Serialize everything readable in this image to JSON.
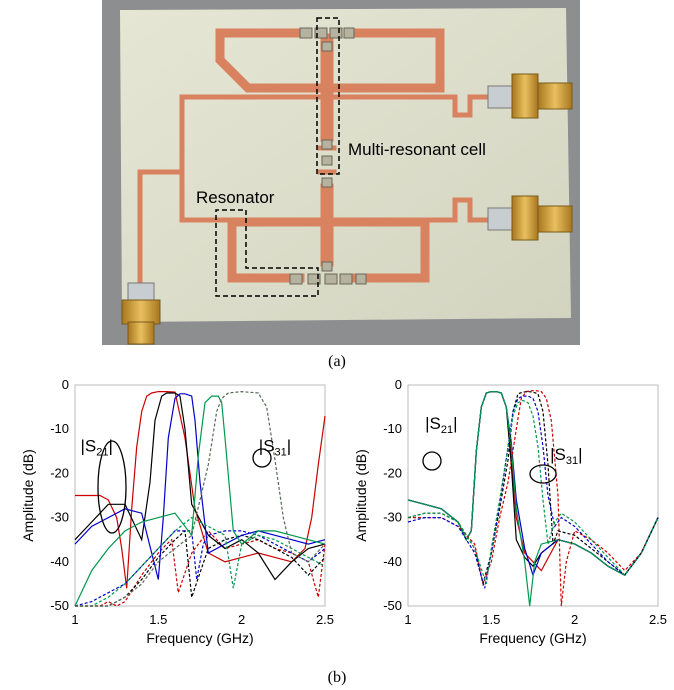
{
  "photo": {
    "labels": {
      "cell": "Multi-resonant cell",
      "resonator": "Resonator"
    },
    "colors": {
      "board": "#dcdcc8",
      "copper": "#d9825f",
      "background": "#8c8e90",
      "connector": "#d4a240"
    }
  },
  "captions": {
    "a": "(a)",
    "b": "(b)"
  },
  "chart_data": [
    {
      "type": "line",
      "xlabel": "Frequency (GHz)",
      "ylabel": "Amplitude (dB)",
      "xlim": [
        1,
        2.5
      ],
      "ylim": [
        -50,
        0
      ],
      "xticks": [
        "1",
        "1.5",
        "2",
        "2.5"
      ],
      "yticks": [
        "0",
        "-10",
        "-20",
        "-30",
        "-40",
        "-50"
      ],
      "annotations": [
        {
          "base": "|S",
          "sub": "21",
          "end": "|",
          "x": 1.13,
          "y": -15
        },
        {
          "base": "|S",
          "sub": "31",
          "end": "|",
          "x": 2.2,
          "y": -15
        }
      ],
      "series": [
        {
          "color": "#cc0000",
          "style": "solid",
          "x": [
            1,
            1.05,
            1.1,
            1.15,
            1.2,
            1.25,
            1.28,
            1.31,
            1.34,
            1.37,
            1.4,
            1.43,
            1.46,
            1.5,
            1.55,
            1.6,
            1.66,
            1.72,
            1.8,
            1.9,
            2,
            2.1,
            2.2,
            2.3,
            2.38,
            2.42,
            2.46,
            2.5
          ],
          "y": [
            -25,
            -25,
            -25,
            -25,
            -26,
            -30,
            -37,
            -46,
            -28,
            -14,
            -6,
            -2.5,
            -1.8,
            -1.5,
            -1.5,
            -1.6,
            -12,
            -28,
            -38,
            -40,
            -39,
            -38,
            -39,
            -40,
            -37,
            -30,
            -18,
            -7
          ]
        },
        {
          "color": "#cc0000",
          "style": "dashed",
          "x": [
            1,
            1.05,
            1.1,
            1.15,
            1.2,
            1.25,
            1.3,
            1.4,
            1.5,
            1.55,
            1.58,
            1.62,
            1.7,
            1.8,
            1.9,
            2.0,
            2.1,
            2.2,
            2.3,
            2.4,
            2.46,
            2.5
          ],
          "y": [
            -50,
            -50,
            -50,
            -50,
            -49,
            -50,
            -49,
            -43,
            -38,
            -36,
            -35,
            -47,
            -38,
            -33,
            -37,
            -36,
            -35,
            -37,
            -38,
            -40,
            -48,
            -36
          ]
        },
        {
          "color": "#000000",
          "style": "solid",
          "x": [
            1,
            1.05,
            1.1,
            1.15,
            1.2,
            1.3,
            1.4,
            1.45,
            1.48,
            1.52,
            1.55,
            1.6,
            1.63,
            1.66,
            1.7,
            1.8,
            1.9,
            2,
            2.1,
            2.2,
            2.3,
            2.4,
            2.5
          ],
          "y": [
            -35,
            -33,
            -31,
            -29,
            -27,
            -27,
            -35,
            -22,
            -8,
            -2.5,
            -1.8,
            -1.8,
            -2.5,
            -10,
            -27,
            -34,
            -37,
            -35,
            -38,
            -44,
            -40,
            -37,
            -36
          ]
        },
        {
          "color": "#000000",
          "style": "dashed",
          "x": [
            1,
            1.1,
            1.2,
            1.3,
            1.4,
            1.5,
            1.6,
            1.66,
            1.7,
            1.8,
            1.9,
            2,
            2.1,
            2.2,
            2.3,
            2.4,
            2.5
          ],
          "y": [
            -50,
            -50,
            -50,
            -48,
            -44,
            -39,
            -35,
            -33,
            -48,
            -37,
            -35,
            -34,
            -35,
            -37,
            -39,
            -43,
            -39
          ]
        },
        {
          "color": "#0000cc",
          "style": "solid",
          "x": [
            1,
            1.1,
            1.2,
            1.3,
            1.4,
            1.5,
            1.53,
            1.56,
            1.6,
            1.63,
            1.66,
            1.7,
            1.72,
            1.75,
            1.8,
            1.9,
            2,
            2.1,
            2.2,
            2.3,
            2.4,
            2.5
          ],
          "y": [
            -36,
            -32,
            -30,
            -28,
            -29,
            -44,
            -30,
            -12,
            -3,
            -2,
            -2,
            -2.5,
            -8,
            -22,
            -38,
            -36,
            -34,
            -33,
            -34,
            -35,
            -36,
            -35
          ]
        },
        {
          "color": "#0000cc",
          "style": "dashed",
          "x": [
            1,
            1.1,
            1.2,
            1.3,
            1.4,
            1.5,
            1.6,
            1.7,
            1.73,
            1.77,
            1.8,
            1.9,
            2,
            2.1,
            2.2,
            2.3,
            2.4,
            2.5
          ],
          "y": [
            -50,
            -49,
            -47,
            -45,
            -41,
            -37,
            -33,
            -33,
            -44,
            -36,
            -34,
            -33,
            -33,
            -34,
            -36,
            -38,
            -40,
            -37
          ]
        },
        {
          "color": "#00994c",
          "style": "solid",
          "x": [
            1,
            1.1,
            1.2,
            1.3,
            1.4,
            1.5,
            1.6,
            1.7,
            1.74,
            1.78,
            1.82,
            1.86,
            1.88,
            1.9,
            1.95,
            2,
            2.1,
            2.2,
            2.3,
            2.4,
            2.5
          ],
          "y": [
            -50,
            -42,
            -37,
            -33,
            -31,
            -30,
            -29,
            -34,
            -16,
            -4,
            -2.5,
            -2.5,
            -4,
            -12,
            -33,
            -36,
            -33,
            -33,
            -34,
            -35,
            -36
          ]
        },
        {
          "color": "#00994c",
          "style": "dashed",
          "x": [
            1,
            1.1,
            1.2,
            1.3,
            1.4,
            1.5,
            1.6,
            1.7,
            1.8,
            1.9,
            1.95,
            2,
            2.1,
            2.2,
            2.3,
            2.4,
            2.5
          ],
          "y": [
            -50,
            -50,
            -48,
            -45,
            -41,
            -37,
            -33,
            -30,
            -32,
            -34,
            -46,
            -36,
            -34,
            -35,
            -37,
            -39,
            -41
          ]
        },
        {
          "color": "#556b55",
          "style": "dashed",
          "x": [
            1,
            1.1,
            1.2,
            1.3,
            1.4,
            1.5,
            1.6,
            1.7,
            1.8,
            1.85,
            1.88,
            1.92,
            2,
            2.1,
            2.15,
            2.2,
            2.25,
            2.3,
            2.4,
            2.5
          ],
          "y": [
            -50,
            -50,
            -50,
            -48,
            -45,
            -40,
            -37,
            -34,
            -18,
            -6,
            -3,
            -1.8,
            -1.5,
            -1.8,
            -5,
            -17,
            -30,
            -38,
            -40,
            -36
          ]
        }
      ]
    },
    {
      "type": "line",
      "xlabel": "Frequency (GHz)",
      "ylabel": "Amplitude (dB)",
      "xlim": [
        1,
        2.5
      ],
      "ylim": [
        -50,
        0
      ],
      "xticks": [
        "1",
        "1.5",
        "2",
        "2.5"
      ],
      "yticks": [
        "0",
        "-10",
        "-20",
        "-30",
        "-40",
        "-50"
      ],
      "annotations": [
        {
          "base": "|S",
          "sub": "21",
          "end": "|",
          "x": 1.2,
          "y": -10
        },
        {
          "base": "|S",
          "sub": "31",
          "end": "|",
          "x": 1.95,
          "y": -17
        }
      ],
      "series": [
        {
          "color": "#cc0000",
          "style": "solid",
          "x": [
            1,
            1.1,
            1.2,
            1.3,
            1.35,
            1.38,
            1.41,
            1.44,
            1.47,
            1.5,
            1.53,
            1.56,
            1.59,
            1.62,
            1.65,
            1.7,
            1.75,
            1.8,
            1.9,
            2,
            2.1,
            2.2,
            2.3,
            2.4,
            2.5
          ],
          "y": [
            -26,
            -27,
            -28,
            -31,
            -35,
            -33,
            -15,
            -5,
            -1.8,
            -1.5,
            -1.5,
            -1.8,
            -5,
            -16,
            -30,
            -38,
            -40,
            -42,
            -35,
            -36,
            -38,
            -41,
            -43,
            -38,
            -30
          ]
        },
        {
          "color": "#000000",
          "style": "solid",
          "x": [
            1,
            1.1,
            1.2,
            1.3,
            1.35,
            1.38,
            1.41,
            1.44,
            1.47,
            1.5,
            1.53,
            1.56,
            1.59,
            1.62,
            1.65,
            1.7,
            1.75,
            1.8,
            1.9,
            2,
            2.1,
            2.2,
            2.3,
            2.4,
            2.5
          ],
          "y": [
            -26,
            -27,
            -28,
            -31,
            -35,
            -33,
            -15,
            -5,
            -1.8,
            -1.5,
            -1.5,
            -1.8,
            -5,
            -18,
            -35,
            -39,
            -41,
            -38,
            -35,
            -36,
            -38,
            -41,
            -43,
            -38,
            -30
          ]
        },
        {
          "color": "#0000cc",
          "style": "solid",
          "x": [
            1,
            1.1,
            1.2,
            1.3,
            1.35,
            1.38,
            1.41,
            1.44,
            1.47,
            1.5,
            1.53,
            1.56,
            1.59,
            1.62,
            1.65,
            1.7,
            1.75,
            1.8,
            1.9,
            2,
            2.1,
            2.2,
            2.3,
            2.4,
            2.5
          ],
          "y": [
            -26,
            -27,
            -28,
            -31,
            -35,
            -33,
            -15,
            -5,
            -1.8,
            -1.5,
            -1.5,
            -1.8,
            -5,
            -13,
            -26,
            -37,
            -43,
            -38,
            -35,
            -36,
            -38,
            -41,
            -43,
            -38,
            -30
          ]
        },
        {
          "color": "#00994c",
          "style": "solid",
          "x": [
            1,
            1.1,
            1.2,
            1.3,
            1.35,
            1.38,
            1.41,
            1.44,
            1.47,
            1.5,
            1.53,
            1.56,
            1.59,
            1.62,
            1.65,
            1.7,
            1.73,
            1.76,
            1.8,
            1.9,
            2,
            2.1,
            2.2,
            2.3,
            2.4,
            2.5
          ],
          "y": [
            -26,
            -27,
            -28,
            -31,
            -35,
            -33,
            -15,
            -5,
            -1.8,
            -1.5,
            -1.5,
            -1.8,
            -5,
            -14,
            -28,
            -40,
            -50,
            -40,
            -36,
            -35,
            -36,
            -38,
            -41,
            -43,
            -38,
            -30
          ]
        },
        {
          "color": "#cc0000",
          "style": "dashed",
          "x": [
            1,
            1.1,
            1.2,
            1.3,
            1.4,
            1.45,
            1.5,
            1.55,
            1.6,
            1.65,
            1.68,
            1.71,
            1.74,
            1.77,
            1.8,
            1.83,
            1.86,
            1.9,
            1.92,
            1.95,
            2,
            2.1,
            2.2,
            2.3,
            2.4,
            2.5
          ],
          "y": [
            -30,
            -30,
            -30,
            -32,
            -36,
            -45,
            -40,
            -30,
            -22,
            -10,
            -3,
            -1.5,
            -1.3,
            -1.3,
            -1.5,
            -3,
            -8,
            -25,
            -50,
            -40,
            -33,
            -35,
            -38,
            -42,
            -38,
            -30
          ]
        },
        {
          "color": "#000000",
          "style": "dashed",
          "x": [
            1,
            1.1,
            1.2,
            1.3,
            1.4,
            1.45,
            1.5,
            1.55,
            1.6,
            1.63,
            1.66,
            1.69,
            1.72,
            1.75,
            1.78,
            1.81,
            1.84,
            1.87,
            1.9,
            2,
            2.1,
            2.2,
            2.3,
            2.4,
            2.5
          ],
          "y": [
            -30,
            -29,
            -29,
            -31,
            -37,
            -45,
            -38,
            -28,
            -17,
            -6,
            -2,
            -1.6,
            -1.5,
            -1.6,
            -2,
            -6,
            -18,
            -36,
            -33,
            -34,
            -37,
            -40,
            -43,
            -38,
            -30
          ]
        },
        {
          "color": "#0000cc",
          "style": "dashed",
          "x": [
            1,
            1.1,
            1.2,
            1.3,
            1.4,
            1.46,
            1.5,
            1.55,
            1.6,
            1.63,
            1.66,
            1.69,
            1.72,
            1.75,
            1.78,
            1.81,
            1.84,
            1.88,
            1.92,
            2,
            2.1,
            2.2,
            2.3,
            2.4,
            2.5
          ],
          "y": [
            -31,
            -30,
            -30,
            -32,
            -38,
            -46,
            -38,
            -27,
            -14,
            -6,
            -3,
            -2.5,
            -2.5,
            -3,
            -6,
            -14,
            -25,
            -32,
            -30,
            -32,
            -36,
            -40,
            -43,
            -38,
            -30
          ]
        },
        {
          "color": "#00994c",
          "style": "dashed",
          "x": [
            1,
            1.1,
            1.2,
            1.3,
            1.4,
            1.47,
            1.5,
            1.55,
            1.6,
            1.63,
            1.66,
            1.69,
            1.72,
            1.75,
            1.78,
            1.81,
            1.84,
            1.88,
            1.92,
            2,
            2.1,
            2.2,
            2.3,
            2.4,
            2.5
          ],
          "y": [
            -30,
            -29,
            -29,
            -31,
            -37,
            -45,
            -37,
            -26,
            -14,
            -7,
            -4,
            -3.5,
            -4,
            -7,
            -14,
            -26,
            -36,
            -31,
            -29,
            -31,
            -35,
            -39,
            -43,
            -38,
            -30
          ]
        }
      ]
    }
  ]
}
